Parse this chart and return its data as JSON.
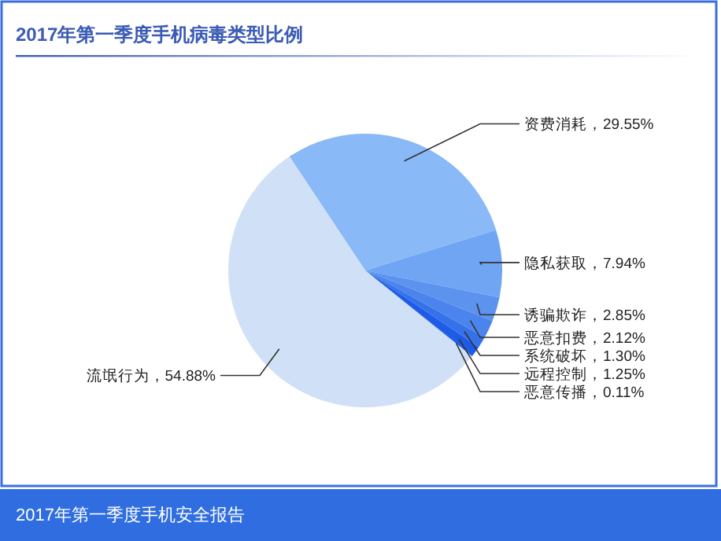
{
  "chart_data": {
    "type": "pie",
    "title": "2017年第一季度手机病毒类型比例",
    "categories": [
      "资费消耗",
      "隐私获取",
      "诱骗欺诈",
      "恶意扣费",
      "系统破坏",
      "远程控制",
      "恶意传播",
      "流氓行为"
    ],
    "values": [
      29.55,
      7.94,
      2.85,
      2.12,
      1.3,
      1.25,
      0.11,
      54.88
    ],
    "value_labels": [
      "29.55%",
      "7.94%",
      "2.85%",
      "2.12%",
      "1.30%",
      "1.25%",
      "0.11%",
      "54.88%"
    ],
    "colors": [
      "#8ab9f7",
      "#70a5f3",
      "#5b93ee",
      "#4a84ec",
      "#3572ea",
      "#1e5ce8",
      "#0a3fd8",
      "#cfe0f7"
    ],
    "annotations": [
      "2017年第一季度手机安全报告"
    ]
  }
}
